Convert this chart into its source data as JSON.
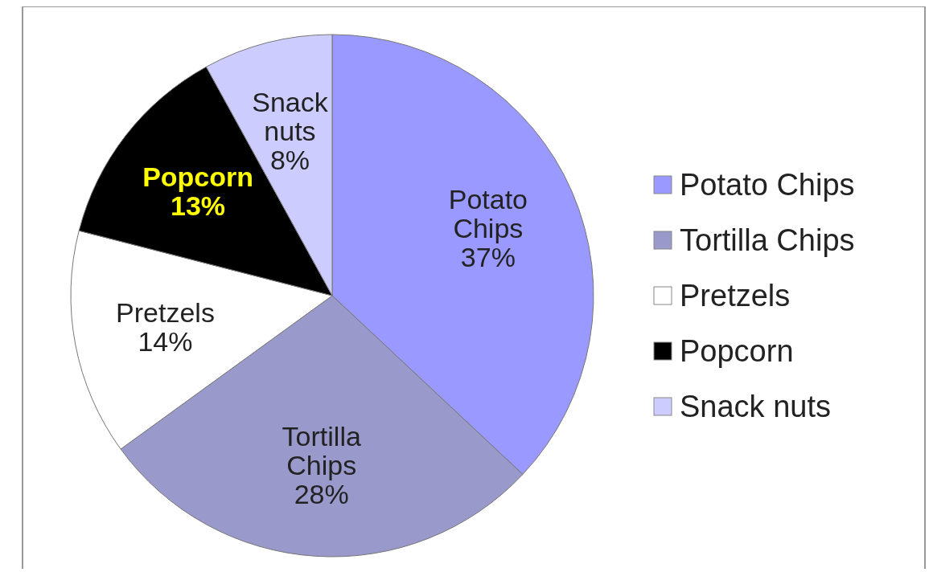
{
  "chart_data": {
    "type": "pie",
    "categories": [
      "Potato Chips",
      "Tortilla Chips",
      "Pretzels",
      "Popcorn",
      "Snack nuts"
    ],
    "values": [
      37,
      28,
      14,
      13,
      8
    ],
    "colors": [
      "#9999ff",
      "#9999cc",
      "#ffffff",
      "#000000",
      "#ccccff"
    ],
    "value_labels": [
      "37%",
      "28%",
      "14%",
      "13%",
      "8%"
    ],
    "legend": "right"
  }
}
